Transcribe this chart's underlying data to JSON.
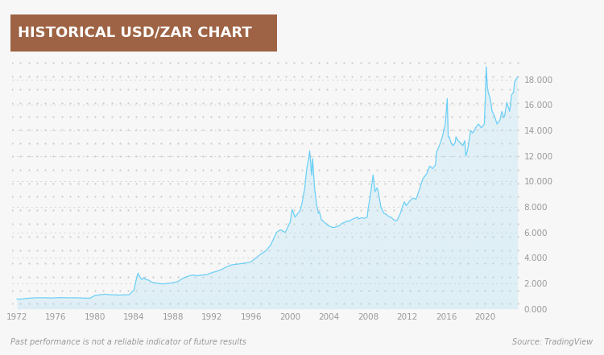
{
  "title": "HISTORICAL USD/ZAR CHART",
  "title_bg_color": "#9e6344",
  "title_text_color": "#ffffff",
  "bg_color": "#f7f7f7",
  "line_color": "#6bcff6",
  "fill_color": "#a8def5",
  "grid_color": "#c8c8c8",
  "text_color": "#999999",
  "disclaimer": "Past performance is not a reliable indicator of future results",
  "source": "Source: TradingView",
  "x_ticks": [
    1972,
    1976,
    1980,
    1984,
    1988,
    1992,
    1996,
    2000,
    2004,
    2008,
    2012,
    2016,
    2020
  ],
  "y_ticks": [
    0.0,
    2.0,
    4.0,
    6.0,
    8.0,
    10.0,
    12.0,
    14.0,
    16.0,
    18.0
  ],
  "ylim": [
    0,
    19.5
  ],
  "xlim": [
    1971.5,
    2023.5
  ],
  "data_x": [
    1972.0,
    1972.5,
    1973.0,
    1973.5,
    1974.0,
    1974.5,
    1975.0,
    1975.5,
    1976.0,
    1976.5,
    1977.0,
    1977.5,
    1978.0,
    1978.5,
    1979.0,
    1979.5,
    1980.0,
    1980.5,
    1981.0,
    1981.5,
    1982.0,
    1982.5,
    1983.0,
    1983.5,
    1984.0,
    1984.2,
    1984.4,
    1984.6,
    1984.8,
    1985.0,
    1985.2,
    1985.5,
    1985.8,
    1986.0,
    1986.5,
    1987.0,
    1987.5,
    1988.0,
    1988.5,
    1989.0,
    1989.5,
    1990.0,
    1990.5,
    1991.0,
    1991.5,
    1992.0,
    1992.5,
    1993.0,
    1993.5,
    1994.0,
    1994.5,
    1995.0,
    1995.5,
    1996.0,
    1996.5,
    1997.0,
    1997.5,
    1998.0,
    1998.3,
    1998.6,
    1999.0,
    1999.5,
    2000.0,
    2000.2,
    2000.5,
    2000.8,
    2001.0,
    2001.2,
    2001.5,
    2001.7,
    2001.9,
    2002.0,
    2002.1,
    2002.2,
    2002.3,
    2002.5,
    2002.7,
    2002.9,
    2003.0,
    2003.2,
    2003.5,
    2003.8,
    2004.0,
    2004.3,
    2004.6,
    2004.9,
    2005.0,
    2005.3,
    2005.6,
    2005.9,
    2006.0,
    2006.3,
    2006.6,
    2006.9,
    2007.0,
    2007.3,
    2007.6,
    2007.9,
    2008.0,
    2008.2,
    2008.5,
    2008.7,
    2008.9,
    2009.0,
    2009.3,
    2009.6,
    2009.9,
    2010.0,
    2010.3,
    2010.6,
    2010.9,
    2011.0,
    2011.3,
    2011.5,
    2011.7,
    2011.9,
    2012.0,
    2012.3,
    2012.6,
    2012.9,
    2013.0,
    2013.3,
    2013.6,
    2013.9,
    2014.0,
    2014.3,
    2014.6,
    2014.9,
    2015.0,
    2015.3,
    2015.6,
    2015.9,
    2016.0,
    2016.1,
    2016.2,
    2016.3,
    2016.5,
    2016.7,
    2016.9,
    2017.0,
    2017.2,
    2017.5,
    2017.7,
    2017.9,
    2018.0,
    2018.2,
    2018.5,
    2018.7,
    2018.9,
    2019.0,
    2019.3,
    2019.6,
    2019.9,
    2020.0,
    2020.1,
    2020.2,
    2020.3,
    2020.5,
    2020.7,
    2020.9,
    2021.0,
    2021.2,
    2021.5,
    2021.7,
    2021.9,
    2022.0,
    2022.2,
    2022.5,
    2022.7,
    2022.9,
    2023.0,
    2023.3
  ],
  "data_y": [
    0.77,
    0.77,
    0.82,
    0.85,
    0.87,
    0.87,
    0.87,
    0.85,
    0.87,
    0.88,
    0.87,
    0.87,
    0.87,
    0.86,
    0.84,
    0.84,
    1.05,
    1.1,
    1.15,
    1.1,
    1.1,
    1.08,
    1.1,
    1.1,
    1.5,
    2.2,
    2.8,
    2.5,
    2.3,
    2.45,
    2.3,
    2.25,
    2.1,
    2.05,
    2.0,
    1.95,
    2.0,
    2.05,
    2.15,
    2.4,
    2.55,
    2.65,
    2.6,
    2.65,
    2.7,
    2.85,
    2.95,
    3.1,
    3.3,
    3.45,
    3.5,
    3.55,
    3.6,
    3.7,
    4.0,
    4.3,
    4.55,
    5.0,
    5.5,
    6.0,
    6.2,
    6.0,
    6.8,
    7.8,
    7.2,
    7.5,
    7.7,
    8.2,
    9.5,
    11.0,
    11.8,
    12.4,
    11.5,
    10.5,
    11.8,
    9.5,
    8.2,
    7.5,
    7.6,
    7.0,
    6.8,
    6.6,
    6.5,
    6.4,
    6.4,
    6.5,
    6.5,
    6.7,
    6.8,
    6.9,
    6.85,
    7.0,
    7.1,
    7.2,
    7.05,
    7.15,
    7.1,
    7.2,
    7.9,
    8.8,
    10.5,
    9.2,
    9.5,
    9.3,
    8.0,
    7.5,
    7.4,
    7.3,
    7.2,
    7.0,
    6.9,
    7.0,
    7.5,
    8.0,
    8.4,
    8.1,
    8.2,
    8.5,
    8.7,
    8.6,
    8.8,
    9.5,
    10.2,
    10.5,
    10.6,
    11.2,
    11.0,
    11.3,
    12.3,
    12.8,
    13.5,
    14.5,
    15.5,
    16.5,
    13.5,
    13.5,
    13.0,
    12.8,
    13.0,
    13.5,
    13.2,
    13.0,
    12.8,
    13.2,
    12.0,
    12.5,
    14.0,
    13.8,
    14.0,
    14.2,
    14.5,
    14.2,
    14.5,
    16.5,
    19.0,
    17.5,
    17.0,
    16.5,
    15.5,
    15.2,
    15.0,
    14.5,
    14.8,
    15.5,
    15.0,
    15.2,
    16.2,
    15.5,
    16.8,
    17.0,
    17.8,
    18.2
  ]
}
